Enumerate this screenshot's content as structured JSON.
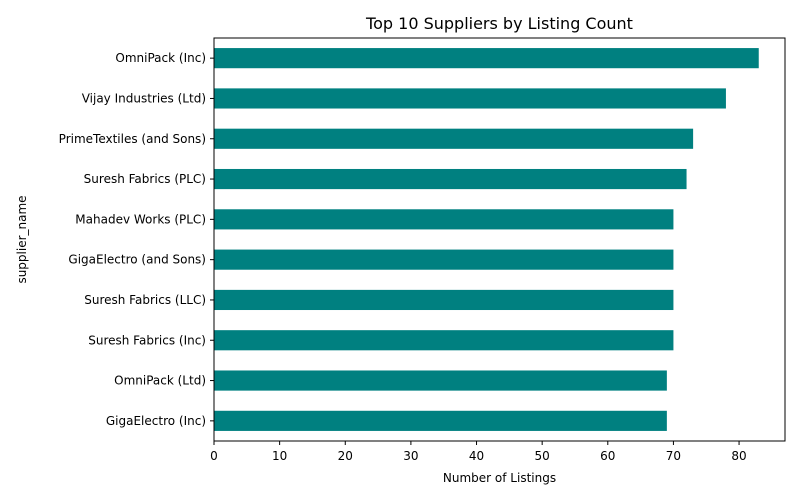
{
  "chart_data": {
    "type": "bar",
    "orientation": "horizontal",
    "title": "Top 10 Suppliers by Listing Count",
    "xlabel": "Number of Listings",
    "ylabel": "supplier_name",
    "xlim": [
      0,
      87
    ],
    "xticks": [
      0,
      10,
      20,
      30,
      40,
      50,
      60,
      70,
      80
    ],
    "grid": false,
    "legend": "none",
    "bar_color": "#008080",
    "categories": [
      "OmniPack (Inc)",
      "Vijay Industries (Ltd)",
      "PrimeTextiles (and Sons)",
      "Suresh Fabrics (PLC)",
      "Mahadev Works (PLC)",
      "GigaElectro (and Sons)",
      "Suresh Fabrics (LLC)",
      "Suresh Fabrics (Inc)",
      "OmniPack (Ltd)",
      "GigaElectro (Inc)"
    ],
    "values": [
      83,
      78,
      73,
      72,
      70,
      70,
      70,
      70,
      69,
      69
    ]
  }
}
